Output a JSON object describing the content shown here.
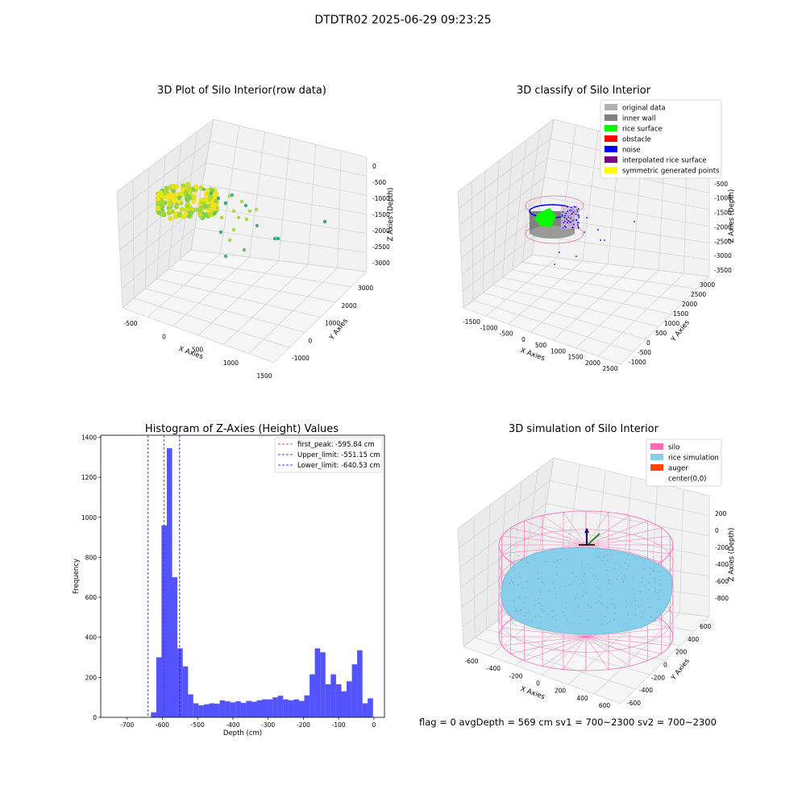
{
  "figure": {
    "suptitle": "DTDTR02 2025-06-29 09:23:25",
    "footer": "flag = 0     avgDepth = 569 cm  sv1 = 700~2300  sv2 = 700~2300"
  },
  "colors": {
    "grey_light": "#b0b0b0",
    "grey_dark": "#808080",
    "lime": "#00ff00",
    "red": "#ff0000",
    "blue": "#0000ff",
    "purple": "#800080",
    "yellow": "#ffff00",
    "hist_bar": "#4a4aff",
    "pink": "#ff69b4",
    "skyblue": "#87ceeb",
    "orange": "#ff4500",
    "pane": "#f2f2f2"
  },
  "chart_data": [
    {
      "type": "scatter",
      "title": "3D Plot of Silo Interior(row data)",
      "xlabel": "X Axies",
      "ylabel": "Y Axies",
      "zlabel": "Z Axies (Depth)",
      "xticks": [
        "-500",
        "0",
        "500",
        "1000",
        "1500"
      ],
      "yticks": [
        "-1000",
        "0",
        "1000",
        "2000",
        "3000"
      ],
      "zticks": [
        "0",
        "-500",
        "-1000",
        "-1500",
        "-2000",
        "-2500",
        "-3000"
      ],
      "colormap": "viridis",
      "grid": true
    },
    {
      "type": "scatter",
      "title": "3D classify of Silo Interior",
      "xlabel": "X Axies",
      "ylabel": "Y Axies",
      "zlabel": "Z Axies (Depth)",
      "xticks": [
        "-1500",
        "-1000",
        "-500",
        "0",
        "500",
        "1000",
        "1500",
        "2000",
        "2500"
      ],
      "yticks": [
        "-1000",
        "-500",
        "0",
        "500",
        "1000",
        "1500",
        "2000",
        "2500",
        "3000"
      ],
      "zticks": [
        "0",
        "-500",
        "-1000",
        "-1500",
        "-2000",
        "-2500",
        "-3000",
        "-3500"
      ],
      "legend": [
        {
          "label": "original data",
          "color": "grey_light"
        },
        {
          "label": "inner wall",
          "color": "grey_dark"
        },
        {
          "label": "rice surface",
          "color": "lime"
        },
        {
          "label": "obstacle",
          "color": "red"
        },
        {
          "label": "noise",
          "color": "blue"
        },
        {
          "label": "interpolated rice surface",
          "color": "purple"
        },
        {
          "label": "symmetric generated points",
          "color": "yellow"
        }
      ],
      "legend_position": "top-right",
      "grid": true
    },
    {
      "type": "bar",
      "title": "Histogram of Z-Axies (Height) Values",
      "xlabel": "Depth (cm)",
      "ylabel": "Frequency",
      "xlim": [
        -775,
        30
      ],
      "ylim": [
        0,
        1410
      ],
      "xticks": [
        -700,
        -600,
        -500,
        -400,
        -300,
        -200,
        -100,
        0
      ],
      "yticks": [
        0,
        200,
        400,
        600,
        800,
        1000,
        1200,
        1400
      ],
      "bin_width": 15,
      "bins": [
        {
          "x": -625,
          "y": 25
        },
        {
          "x": -610,
          "y": 300
        },
        {
          "x": -595,
          "y": 960
        },
        {
          "x": -580,
          "y": 1345
        },
        {
          "x": -565,
          "y": 700
        },
        {
          "x": -550,
          "y": 345
        },
        {
          "x": -535,
          "y": 255
        },
        {
          "x": -520,
          "y": 115
        },
        {
          "x": -505,
          "y": 70
        },
        {
          "x": -490,
          "y": 60
        },
        {
          "x": -475,
          "y": 65
        },
        {
          "x": -460,
          "y": 70
        },
        {
          "x": -445,
          "y": 68
        },
        {
          "x": -430,
          "y": 85
        },
        {
          "x": -415,
          "y": 80
        },
        {
          "x": -400,
          "y": 75
        },
        {
          "x": -385,
          "y": 80
        },
        {
          "x": -370,
          "y": 72
        },
        {
          "x": -355,
          "y": 82
        },
        {
          "x": -340,
          "y": 78
        },
        {
          "x": -325,
          "y": 85
        },
        {
          "x": -310,
          "y": 90
        },
        {
          "x": -295,
          "y": 90
        },
        {
          "x": -280,
          "y": 100
        },
        {
          "x": -265,
          "y": 108
        },
        {
          "x": -250,
          "y": 90
        },
        {
          "x": -235,
          "y": 85
        },
        {
          "x": -220,
          "y": 90
        },
        {
          "x": -205,
          "y": 82
        },
        {
          "x": -190,
          "y": 110
        },
        {
          "x": -175,
          "y": 215
        },
        {
          "x": -160,
          "y": 345
        },
        {
          "x": -145,
          "y": 325
        },
        {
          "x": -130,
          "y": 165
        },
        {
          "x": -115,
          "y": 215
        },
        {
          "x": -100,
          "y": 165
        },
        {
          "x": -85,
          "y": 130
        },
        {
          "x": -70,
          "y": 180
        },
        {
          "x": -55,
          "y": 265
        },
        {
          "x": -40,
          "y": 335
        },
        {
          "x": -25,
          "y": 70
        },
        {
          "x": -10,
          "y": 95
        }
      ],
      "vlines": [
        {
          "x": -595.84,
          "label": "first_peak: -595.84 cm",
          "color": "red"
        },
        {
          "x": -551.15,
          "label": "Upper_limit: -551.15 cm",
          "color": "blue"
        },
        {
          "x": -640.53,
          "label": "Lower_limit: -640.53 cm",
          "color": "blue"
        }
      ],
      "legend_position": "top-right"
    },
    {
      "type": "scatter",
      "title": "3D simulation of Silo Interior",
      "xlabel": "X Axies",
      "ylabel": "Y Axies",
      "zlabel": "Z Axies (Depth)",
      "xticks": [
        "-600",
        "-400",
        "-200",
        "0",
        "200",
        "400",
        "600"
      ],
      "yticks": [
        "-600",
        "-400",
        "-200",
        "0",
        "200",
        "400",
        "600"
      ],
      "zticks": [
        "200",
        "0",
        "-200",
        "-400",
        "-600",
        "-800"
      ],
      "legend": [
        {
          "label": "silo",
          "color": "pink"
        },
        {
          "label": "rice simulation",
          "color": "skyblue"
        },
        {
          "label": "auger",
          "color": "orange"
        },
        {
          "label": "center(0,0)",
          "color": ""
        }
      ],
      "legend_position": "top-right",
      "grid": true
    }
  ]
}
